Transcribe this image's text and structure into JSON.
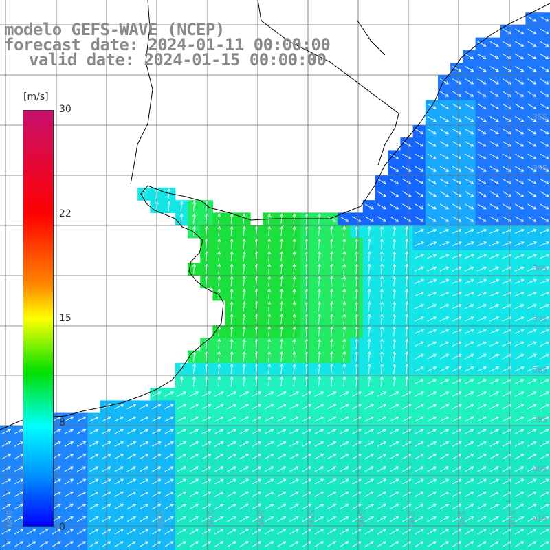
{
  "title": {
    "line1": "modelo GEFS-WAVE (NCEP)",
    "line2": "forecast date: 2024-01-11 00:00:00",
    "line3": "valid date: 2024-01-15 00:00:00"
  },
  "colorbar": {
    "unit": "[m/s]",
    "ticks": [
      "30",
      "22",
      "15",
      "8",
      "0"
    ],
    "colors": [
      "#c8106e",
      "#ff0000",
      "#ff8800",
      "#ffff00",
      "#00e000",
      "#00ffff",
      "#0090ff",
      "#0000ff"
    ]
  },
  "lat_labels": [
    "30S",
    "35S",
    "36S",
    "37S",
    "38S",
    "39S",
    "40S",
    "41S"
  ],
  "lon_labels": [
    "61W",
    "60W",
    "59W",
    "58W",
    "57W",
    "56W",
    "55W",
    "54W",
    "53W",
    "52W",
    "51W"
  ],
  "palette": {
    "land": "#ffffff",
    "grid": "#6c6c6c",
    "coast": "#000000",
    "arrow": "#ffffff"
  }
}
